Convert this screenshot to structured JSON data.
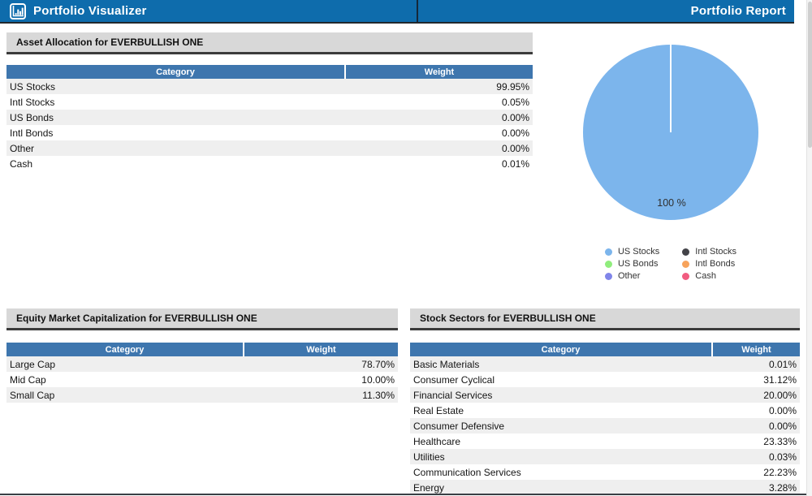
{
  "header": {
    "brand": "Portfolio Visualizer",
    "title": "Portfolio Report"
  },
  "asset_allocation": {
    "section_title": "Asset Allocation for EVERBULLISH ONE",
    "columns": [
      "Category",
      "Weight"
    ],
    "rows": [
      {
        "category": "US Stocks",
        "weight": "99.95%"
      },
      {
        "category": "Intl Stocks",
        "weight": "0.05%"
      },
      {
        "category": "US Bonds",
        "weight": "0.00%"
      },
      {
        "category": "Intl Bonds",
        "weight": "0.00%"
      },
      {
        "category": "Other",
        "weight": "0.00%"
      },
      {
        "category": "Cash",
        "weight": "0.01%"
      }
    ]
  },
  "market_cap": {
    "section_title": "Equity Market Capitalization for EVERBULLISH ONE",
    "columns": [
      "Category",
      "Weight"
    ],
    "rows": [
      {
        "category": "Large Cap",
        "weight": "78.70%"
      },
      {
        "category": "Mid Cap",
        "weight": "10.00%"
      },
      {
        "category": "Small Cap",
        "weight": "11.30%"
      }
    ]
  },
  "sectors": {
    "section_title": "Stock Sectors for EVERBULLISH ONE",
    "columns": [
      "Category",
      "Weight"
    ],
    "rows": [
      {
        "category": "Basic Materials",
        "weight": "0.01%"
      },
      {
        "category": "Consumer Cyclical",
        "weight": "31.12%"
      },
      {
        "category": "Financial Services",
        "weight": "20.00%"
      },
      {
        "category": "Real Estate",
        "weight": "0.00%"
      },
      {
        "category": "Consumer Defensive",
        "weight": "0.00%"
      },
      {
        "category": "Healthcare",
        "weight": "23.33%"
      },
      {
        "category": "Utilities",
        "weight": "0.03%"
      },
      {
        "category": "Communication Services",
        "weight": "22.23%"
      },
      {
        "category": "Energy",
        "weight": "3.28%"
      }
    ]
  },
  "chart_data": {
    "type": "pie",
    "title": "",
    "labels": [
      "US Stocks",
      "Intl Stocks",
      "US Bonds",
      "Intl Bonds",
      "Other",
      "Cash"
    ],
    "values": [
      99.95,
      0.05,
      0.0,
      0.0,
      0.0,
      0.01
    ],
    "slice_label": "100 %",
    "colors": [
      "#7cb5ec",
      "#434348",
      "#90ed7d",
      "#f7a35c",
      "#8085e9",
      "#f15c80"
    ],
    "legend_position": "bottom-center",
    "legend_columns": [
      [
        {
          "label": "US Stocks",
          "color": "#7cb5ec"
        },
        {
          "label": "US Bonds",
          "color": "#90ed7d"
        },
        {
          "label": "Other",
          "color": "#8085e9"
        }
      ],
      [
        {
          "label": "Intl Stocks",
          "color": "#434348"
        },
        {
          "label": "Intl Bonds",
          "color": "#f7a35c"
        },
        {
          "label": "Cash",
          "color": "#f15c80"
        }
      ]
    ]
  },
  "colors": {
    "header_bg": "#0e6cac",
    "th_bg": "#3e76ae",
    "stripe": "#efefef",
    "section_bg": "#d8d8d8",
    "pie_main": "#7cb5ec"
  }
}
